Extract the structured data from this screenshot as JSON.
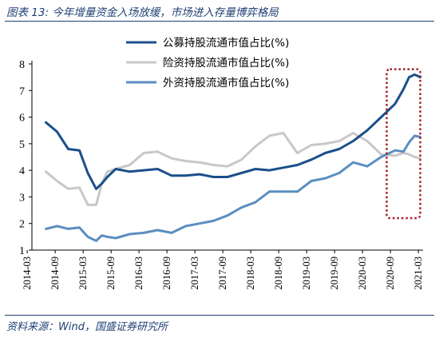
{
  "figure": {
    "title": "图表 13:  今年增量资金入场放缓，市场进入存量博弈格局",
    "source": "资料来源：Wind，国盛证券研究所"
  },
  "chart_data": {
    "type": "line",
    "title": "",
    "xlabel": "",
    "ylabel": "",
    "ylim": [
      1,
      8
    ],
    "yticks": [
      "1",
      "2",
      "3",
      "4",
      "5",
      "6",
      "7",
      "8"
    ],
    "xlim": [
      2014.25,
      2021.25
    ],
    "xticks": [
      "2014-03",
      "2014-09",
      "2015-03",
      "2015-09",
      "2016-03",
      "2016-09",
      "2017-03",
      "2017-09",
      "2018-03",
      "2018-09",
      "2019-03",
      "2019-09",
      "2020-03",
      "2020-09",
      "2021-03"
    ],
    "grid": false,
    "legend_position": "top-right",
    "highlight": {
      "x_range": [
        2020.6,
        2021.2
      ],
      "y_range": [
        2.2,
        7.8
      ],
      "style": "dotted red box"
    },
    "series": [
      {
        "name": "公募持股流通市值占比(%)",
        "color": "#1b4f8a",
        "x": [
          2014.5,
          2014.7,
          2014.9,
          2015.1,
          2015.25,
          2015.4,
          2015.5,
          2015.6,
          2015.75,
          2016.0,
          2016.25,
          2016.5,
          2016.75,
          2017.0,
          2017.25,
          2017.5,
          2017.75,
          2018.0,
          2018.25,
          2018.5,
          2018.75,
          2019.0,
          2019.25,
          2019.5,
          2019.75,
          2020.0,
          2020.25,
          2020.5,
          2020.75,
          2020.9,
          2021.0,
          2021.1,
          2021.2
        ],
        "y": [
          5.8,
          5.45,
          4.8,
          4.75,
          3.9,
          3.3,
          3.5,
          3.75,
          4.05,
          3.95,
          4.0,
          4.05,
          3.8,
          3.8,
          3.85,
          3.75,
          3.75,
          3.9,
          4.05,
          4.0,
          4.1,
          4.2,
          4.4,
          4.65,
          4.8,
          5.1,
          5.5,
          6.0,
          6.5,
          7.05,
          7.5,
          7.6,
          7.5
        ]
      },
      {
        "name": "险资持股流通市值占比(%)",
        "color": "#c8c8c8",
        "x": [
          2014.5,
          2014.7,
          2014.9,
          2015.1,
          2015.25,
          2015.4,
          2015.5,
          2015.6,
          2015.75,
          2016.0,
          2016.25,
          2016.5,
          2016.75,
          2017.0,
          2017.25,
          2017.5,
          2017.75,
          2018.0,
          2018.25,
          2018.5,
          2018.75,
          2019.0,
          2019.25,
          2019.5,
          2019.75,
          2020.0,
          2020.25,
          2020.5,
          2020.75,
          2020.9,
          2021.0,
          2021.1,
          2021.2
        ],
        "y": [
          3.95,
          3.6,
          3.3,
          3.35,
          2.7,
          2.7,
          3.5,
          3.95,
          4.05,
          4.2,
          4.65,
          4.7,
          4.45,
          4.35,
          4.3,
          4.2,
          4.15,
          4.4,
          4.9,
          5.3,
          5.4,
          4.65,
          4.95,
          5.0,
          5.1,
          5.4,
          5.1,
          4.6,
          4.55,
          4.65,
          4.6,
          4.5,
          4.45
        ]
      },
      {
        "name": "外资持股流通市值占比(%)",
        "color": "#5b8ec0",
        "x": [
          2014.5,
          2014.7,
          2014.9,
          2015.1,
          2015.25,
          2015.4,
          2015.5,
          2015.6,
          2015.75,
          2016.0,
          2016.25,
          2016.5,
          2016.75,
          2017.0,
          2017.25,
          2017.5,
          2017.75,
          2018.0,
          2018.25,
          2018.5,
          2018.75,
          2019.0,
          2019.25,
          2019.5,
          2019.75,
          2020.0,
          2020.25,
          2020.5,
          2020.75,
          2020.9,
          2021.0,
          2021.1,
          2021.2
        ],
        "y": [
          1.8,
          1.9,
          1.8,
          1.85,
          1.5,
          1.35,
          1.55,
          1.5,
          1.45,
          1.6,
          1.65,
          1.75,
          1.65,
          1.9,
          2.0,
          2.1,
          2.3,
          2.6,
          2.8,
          3.2,
          3.2,
          3.2,
          3.6,
          3.7,
          3.9,
          4.3,
          4.15,
          4.5,
          4.75,
          4.7,
          5.05,
          5.3,
          5.25
        ]
      }
    ]
  }
}
